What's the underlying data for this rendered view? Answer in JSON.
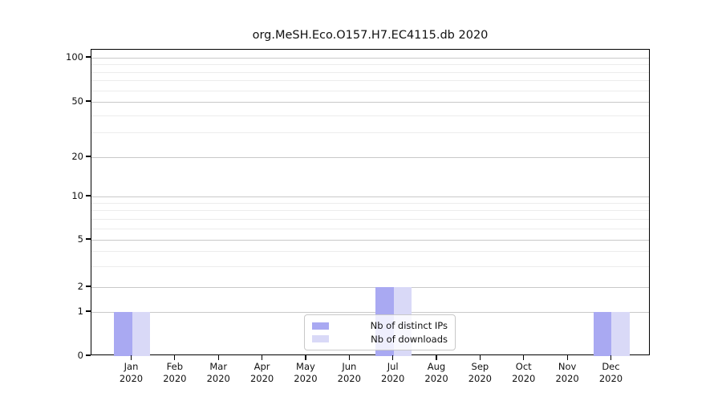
{
  "chart_data": {
    "type": "bar",
    "title": "org.MeSH.Eco.O157.H7.EC4115.db 2020",
    "categories": [
      "Jan",
      "Feb",
      "Mar",
      "Apr",
      "May",
      "Jun",
      "Jul",
      "Aug",
      "Sep",
      "Oct",
      "Nov",
      "Dec"
    ],
    "category_year": "2020",
    "series": [
      {
        "name": "Nb of distinct IPs",
        "color": "#a9a9f2",
        "values": [
          1,
          0,
          0,
          0,
          0,
          0,
          2,
          0,
          0,
          0,
          0,
          1
        ]
      },
      {
        "name": "Nb of downloads",
        "color": "#d9d9f7",
        "values": [
          1,
          0,
          0,
          0,
          0,
          0,
          2,
          0,
          0,
          0,
          0,
          1
        ]
      }
    ],
    "yticks": [
      0,
      1,
      2,
      5,
      10,
      20,
      50,
      100
    ],
    "minor_yticks": [
      3,
      4,
      6,
      7,
      8,
      9,
      30,
      40,
      60,
      70,
      80,
      90
    ],
    "ylim": [
      0,
      115
    ],
    "yscale": "symlog",
    "grid": "horizontal-only",
    "legend_position": "lower center"
  }
}
